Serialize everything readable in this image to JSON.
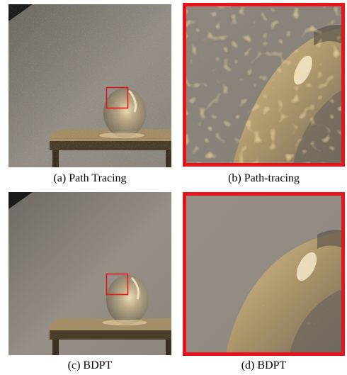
{
  "figure": {
    "panels": [
      {
        "id": "a",
        "caption": "(a) Path Tracing",
        "kind": "scene",
        "noise": "high"
      },
      {
        "id": "b",
        "caption": "(b) Path-tracing",
        "kind": "zoom",
        "noise": "high"
      },
      {
        "id": "c",
        "caption": "(c) BDPT",
        "kind": "scene",
        "noise": "low"
      },
      {
        "id": "d",
        "caption": "(d) BDPT",
        "kind": "zoom",
        "noise": "low"
      }
    ],
    "colors": {
      "highlight_box": "#e8141b",
      "wall": "#8d8880",
      "table_top": "#a18c66",
      "table_dark": "#3f3424",
      "glass_highlight": "#e7d3a3"
    }
  }
}
